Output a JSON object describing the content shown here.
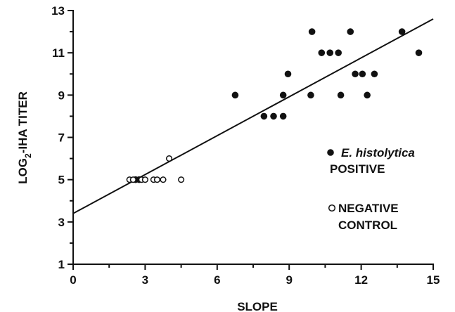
{
  "chart_data": {
    "type": "scatter",
    "xlabel": "SLOPE",
    "ylabel_main": "LOG",
    "ylabel_sub": "2",
    "ylabel_rest": "-IHA TITER",
    "xlim": [
      0,
      15
    ],
    "ylim": [
      1,
      13
    ],
    "x_ticks": [
      0,
      3,
      6,
      9,
      12,
      15
    ],
    "y_ticks": [
      1,
      3,
      5,
      7,
      9,
      11,
      13
    ],
    "grid": false,
    "legend_position": "right",
    "legend": [
      {
        "marker": "filled-circle",
        "line1": "E. histolytica",
        "line2": "POSITIVE"
      },
      {
        "marker": "open-circle",
        "line1": "NEGATIVE",
        "line2": "CONTROL"
      }
    ],
    "series": [
      {
        "marker": "filled",
        "points": [
          [
            2.6,
            5
          ],
          [
            2.75,
            5
          ],
          [
            6.75,
            9
          ],
          [
            7.95,
            8
          ],
          [
            8.35,
            8
          ],
          [
            8.75,
            8
          ],
          [
            8.75,
            9
          ],
          [
            8.95,
            10
          ],
          [
            9.9,
            9
          ],
          [
            9.95,
            12
          ],
          [
            10.35,
            11
          ],
          [
            10.7,
            11
          ],
          [
            11.05,
            11
          ],
          [
            11.15,
            9
          ],
          [
            11.55,
            12
          ],
          [
            11.75,
            10
          ],
          [
            12.05,
            10
          ],
          [
            12.25,
            9
          ],
          [
            12.55,
            10
          ],
          [
            13.7,
            12
          ],
          [
            14.4,
            11
          ]
        ]
      },
      {
        "marker": "open",
        "points": [
          [
            2.35,
            5
          ],
          [
            2.5,
            5
          ],
          [
            2.85,
            5
          ],
          [
            3.0,
            5
          ],
          [
            3.35,
            5
          ],
          [
            3.5,
            5
          ],
          [
            3.75,
            5
          ],
          [
            4.0,
            6
          ],
          [
            4.5,
            5
          ]
        ]
      }
    ],
    "regression_line": {
      "x": [
        0,
        15
      ],
      "y": [
        3.4,
        12.6
      ]
    }
  }
}
